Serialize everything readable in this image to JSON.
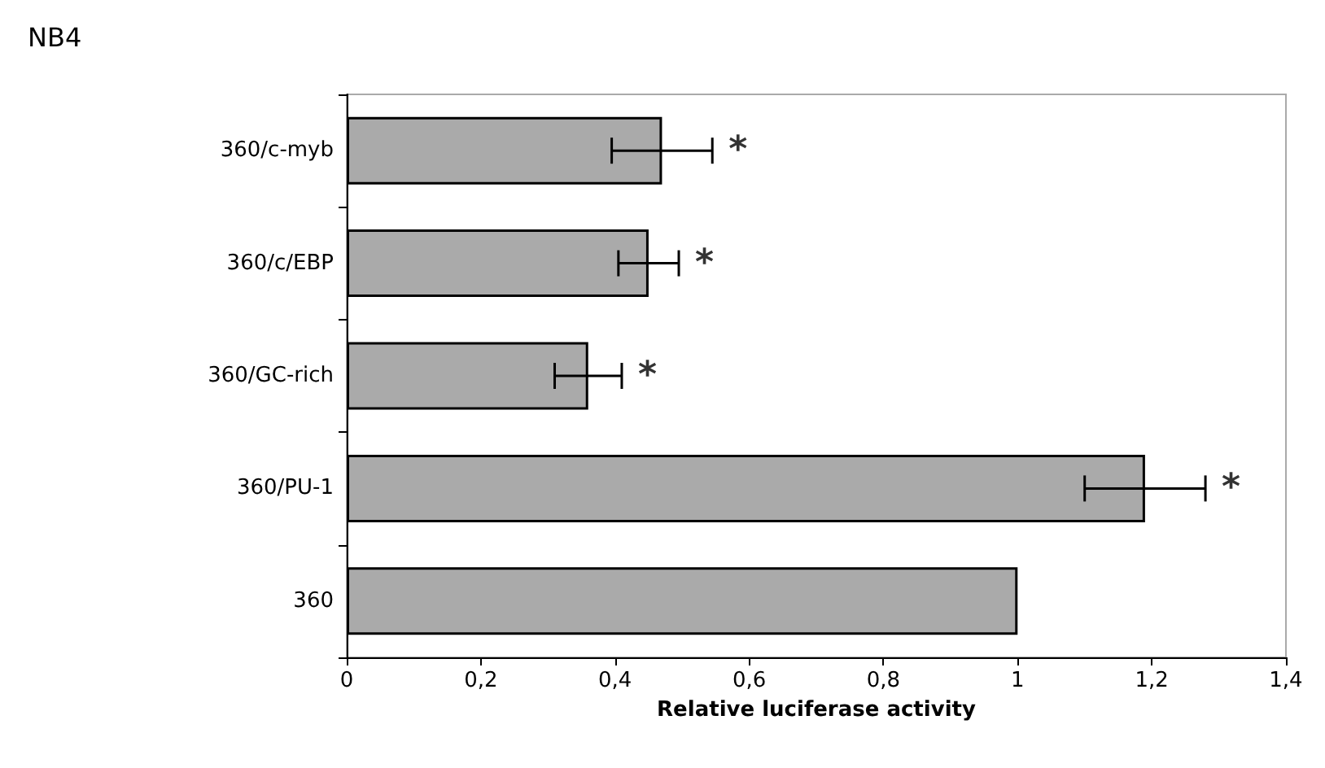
{
  "chart_data": {
    "type": "bar",
    "orientation": "horizontal",
    "title": "NB4",
    "xlabel": "Relative luciferase activity",
    "categories": [
      "360/c-myb",
      "360/c/EBP",
      "360/GC-rich",
      "360/PU-1",
      "360"
    ],
    "values": [
      0.47,
      0.45,
      0.36,
      1.19,
      1.0
    ],
    "color": "#aaaaaa",
    "errors": [
      0.075,
      0.045,
      0.05,
      0.09,
      null
    ],
    "xlim": [
      0,
      1.4
    ],
    "xticks": [
      0,
      {
        "value": 0.2,
        "label": "0,2"
      },
      {
        "value": 0.4,
        "label": "0,4"
      },
      {
        "value": 0.6,
        "label": "0,6"
      },
      {
        "value": 0.8,
        "label": "0,8"
      },
      1,
      {
        "value": 1.2,
        "label": "1,2"
      },
      {
        "value": 1.4,
        "label": "1,4"
      }
    ],
    "annotations": [
      "*",
      "*",
      "*",
      "*"
    ],
    "grid": false
  }
}
